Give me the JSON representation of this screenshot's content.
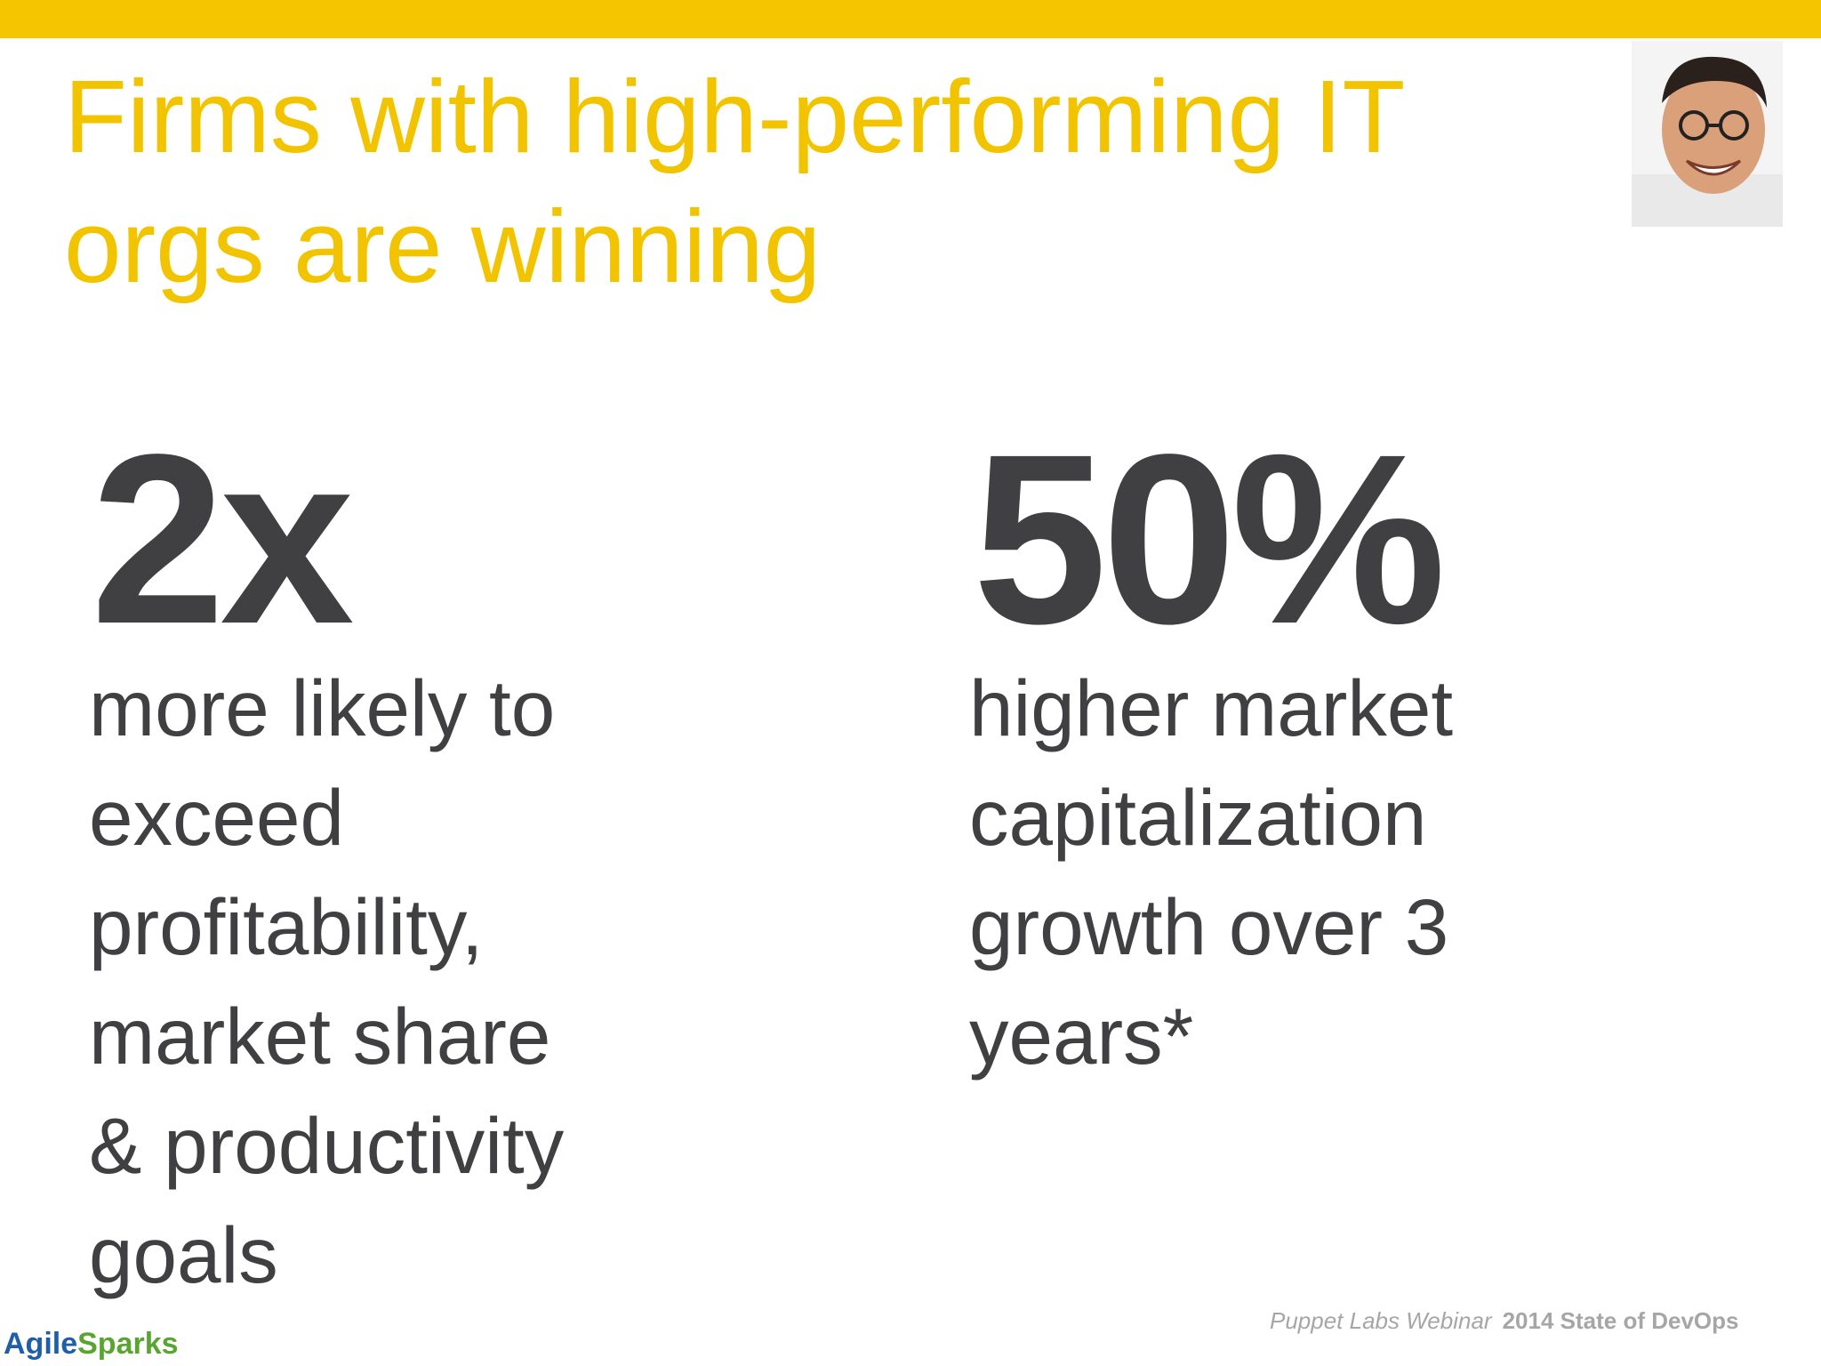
{
  "header": {
    "title_lines": [
      "Firms with high-performing IT",
      "orgs are winning"
    ]
  },
  "stats": [
    {
      "figure": "2x",
      "description_lines": [
        "more likely to",
        "exceed",
        "profitability,",
        "market share",
        "& productivity",
        "goals"
      ]
    },
    {
      "figure": "50%",
      "description_lines": [
        "higher market",
        "capitalization",
        "growth over 3",
        "years*"
      ]
    }
  ],
  "footer": {
    "source": "Puppet Labs Webinar",
    "report": "2014 State of DevOps",
    "logo": {
      "first": "Agile",
      "second": "Sparks"
    }
  }
}
